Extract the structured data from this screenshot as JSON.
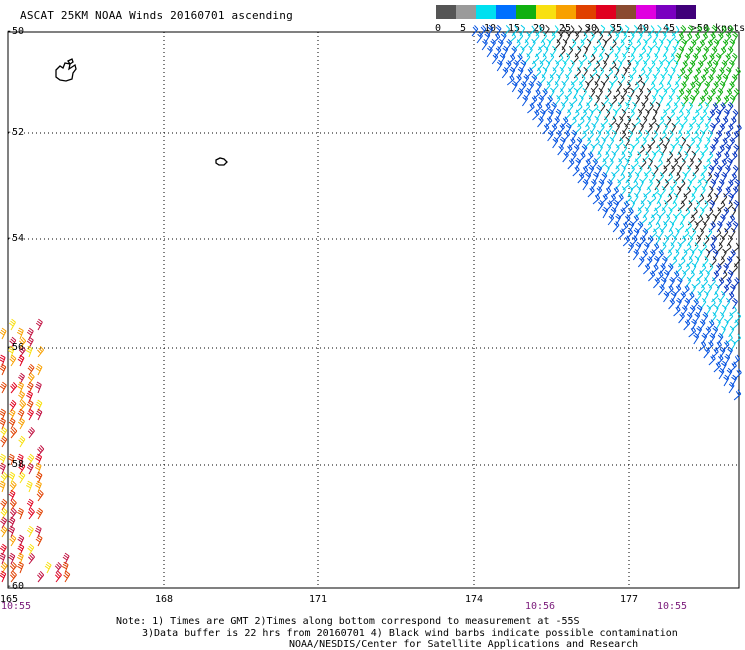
{
  "title": "ASCAT 25KM NOAA Winds 20160701 ascending",
  "legend": {
    "labels": [
      "0",
      "5",
      "10",
      "15",
      "20",
      "25",
      "30",
      "35",
      "40",
      "45",
      ">50 knots"
    ],
    "colors": [
      "#555555",
      "#9a9a9a",
      "#00e0f0",
      "#0070ff",
      "#10b010",
      "#f8e010",
      "#f8a000",
      "#e04000",
      "#e00020",
      "#8a4a30",
      "#e000e0",
      "#7a00c0",
      "#40007a"
    ]
  },
  "map": {
    "lat_labels": [
      "-50",
      "-52",
      "-54",
      "-56",
      "-58",
      "-60"
    ],
    "lon_labels": [
      "165",
      "168",
      "171",
      "174",
      "177"
    ],
    "time_labels": [
      "10:55",
      "10:56",
      "10:55"
    ]
  },
  "notes": {
    "line1": "Note: 1) Times are GMT 2)Times along bottom correspond to measurement at -55S",
    "line2": "3)Data buffer is 22 hrs from 20160701 4) Black wind barbs indicate possible contamination",
    "line3": "NOAA/NESDIS/Center for Satellite Applications and Research"
  }
}
